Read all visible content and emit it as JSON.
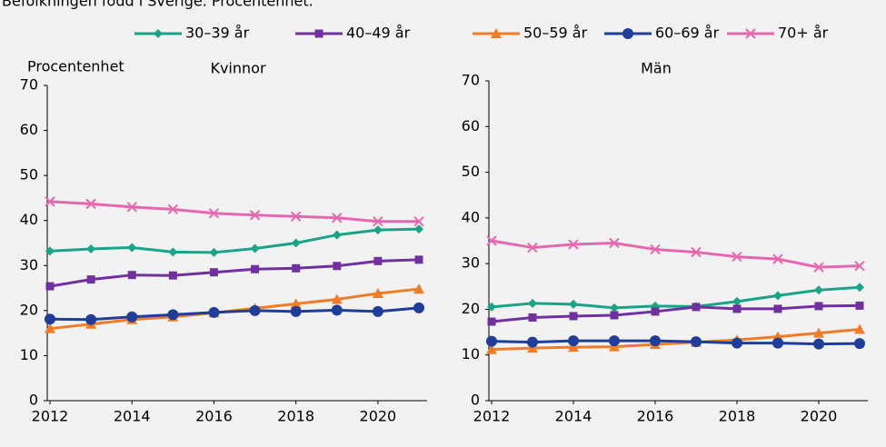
{
  "subtitle": "Befolkningen född i Sverige. Procentenhet.",
  "y_label": "Procentenhet",
  "chart_data": [
    {
      "type": "line",
      "title": "Kvinnor",
      "x": [
        2012,
        2013,
        2014,
        2015,
        2016,
        2017,
        2018,
        2019,
        2020,
        2021
      ],
      "xlim": [
        2012,
        2021
      ],
      "xticks": [
        2012,
        2014,
        2016,
        2018,
        2020
      ],
      "ylim": [
        0,
        70
      ],
      "yticks": [
        0,
        10,
        20,
        30,
        40,
        50,
        60,
        70
      ],
      "series": [
        {
          "name": "30–39 år",
          "color": "#1aa386",
          "marker": "diamond",
          "values": [
            33.2,
            33.7,
            34,
            33,
            32.9,
            33.8,
            35,
            36.8,
            37.9,
            38.1
          ]
        },
        {
          "name": "40–49 år",
          "color": "#7030a0",
          "marker": "square",
          "values": [
            25.4,
            26.9,
            27.9,
            27.8,
            28.5,
            29.2,
            29.4,
            29.9,
            31,
            31.3
          ]
        },
        {
          "name": "50–59 år",
          "color": "#f07c28",
          "marker": "triangle",
          "values": [
            16,
            17,
            18,
            18.6,
            19.5,
            20.5,
            21.5,
            22.5,
            23.8,
            24.8
          ]
        },
        {
          "name": "60–69 år",
          "color": "#1f3d99",
          "marker": "circle",
          "values": [
            18.1,
            18,
            18.6,
            19.1,
            19.6,
            20,
            19.8,
            20.1,
            19.8,
            20.6
          ]
        },
        {
          "name": "70+ år",
          "color": "#e667b0",
          "marker": "x",
          "values": [
            44.2,
            43.7,
            43,
            42.5,
            41.6,
            41.2,
            40.9,
            40.6,
            39.8,
            39.8
          ]
        }
      ]
    },
    {
      "type": "line",
      "title": "Män",
      "x": [
        2012,
        2013,
        2014,
        2015,
        2016,
        2017,
        2018,
        2019,
        2020,
        2021
      ],
      "xlim": [
        2012,
        2021
      ],
      "xticks": [
        2012,
        2014,
        2016,
        2018,
        2020
      ],
      "ylim": [
        0,
        70
      ],
      "yticks": [
        0,
        10,
        20,
        30,
        40,
        50,
        60,
        70
      ],
      "series": [
        {
          "name": "30–39 år",
          "color": "#1aa386",
          "marker": "diamond",
          "values": [
            20.5,
            21.3,
            21.1,
            20.3,
            20.7,
            20.6,
            21.7,
            23,
            24.2,
            24.8
          ]
        },
        {
          "name": "40–49 år",
          "color": "#7030a0",
          "marker": "square",
          "values": [
            17.3,
            18.2,
            18.5,
            18.7,
            19.5,
            20.5,
            20.1,
            20.1,
            20.7,
            20.8
          ]
        },
        {
          "name": "50–59 år",
          "color": "#f07c28",
          "marker": "triangle",
          "values": [
            11.2,
            11.5,
            11.7,
            11.8,
            12.3,
            12.8,
            13.3,
            14,
            14.8,
            15.6
          ]
        },
        {
          "name": "60–69 år",
          "color": "#1f3d99",
          "marker": "circle",
          "values": [
            13,
            12.8,
            13.1,
            13.1,
            13.1,
            12.9,
            12.6,
            12.6,
            12.4,
            12.5
          ]
        },
        {
          "name": "70+ år",
          "color": "#e667b0",
          "marker": "x",
          "values": [
            35,
            33.5,
            34.2,
            34.5,
            33.1,
            32.5,
            31.5,
            31,
            29.2,
            29.5
          ]
        }
      ]
    }
  ]
}
